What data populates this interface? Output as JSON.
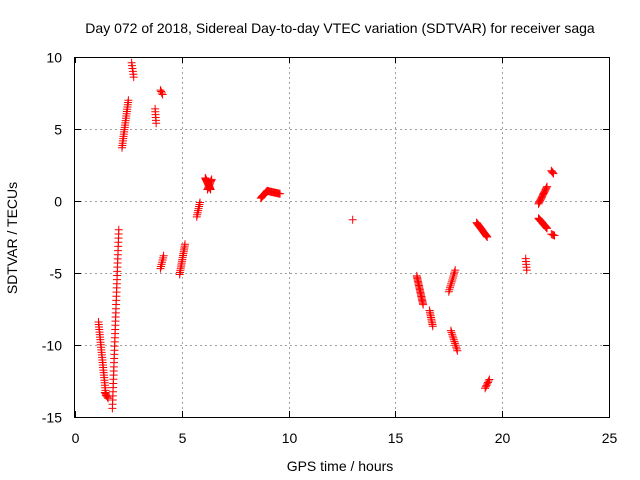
{
  "chart_data": {
    "type": "scatter",
    "title": "Day 072 of 2018, Sidereal Day-to-day VTEC variation (SDTVAR) for receiver saga",
    "xlabel": "GPS time / hours",
    "ylabel": "SDTVAR / TECUs",
    "xlim": [
      0,
      25
    ],
    "ylim": [
      -15,
      10
    ],
    "xticks": [
      0,
      5,
      10,
      15,
      20,
      25
    ],
    "yticks": [
      -15,
      -10,
      -5,
      0,
      5,
      10
    ],
    "xtick_labels": [
      "0",
      "5",
      "10",
      "15",
      "20",
      "25"
    ],
    "ytick_labels": [
      "-15",
      "-10",
      "-5",
      "0",
      "5",
      "10"
    ],
    "grid": true,
    "marker": "+",
    "color": "#ff0000",
    "segments": [
      {
        "x0": 1.1,
        "x1": 1.45,
        "y0": -8.4,
        "y1": -13.5,
        "n": 30
      },
      {
        "x0": 1.4,
        "x1": 1.55,
        "y0": -13.3,
        "y1": -13.7,
        "n": 6
      },
      {
        "x0": 1.75,
        "x1": 2.05,
        "y0": -14.4,
        "y1": -2.0,
        "n": 44
      },
      {
        "x0": 2.2,
        "x1": 2.5,
        "y0": 3.7,
        "y1": 7.0,
        "n": 22
      },
      {
        "x0": 2.65,
        "x1": 2.75,
        "y0": 9.6,
        "y1": 8.6,
        "n": 6
      },
      {
        "x0": 3.75,
        "x1": 3.8,
        "y0": 6.4,
        "y1": 5.4,
        "n": 6
      },
      {
        "x0": 4.0,
        "x1": 4.1,
        "y0": 7.7,
        "y1": 7.4,
        "n": 4
      },
      {
        "x0": 4.0,
        "x1": 4.15,
        "y0": -4.7,
        "y1": -3.8,
        "n": 7
      },
      {
        "x0": 4.9,
        "x1": 5.15,
        "y0": -5.1,
        "y1": -3.0,
        "n": 17
      },
      {
        "x0": 5.7,
        "x1": 5.85,
        "y0": -1.1,
        "y1": -0.1,
        "n": 8
      },
      {
        "x0": 6.1,
        "x1": 6.35,
        "y0": 1.6,
        "y1": 0.8,
        "n": 16
      },
      {
        "x0": 6.2,
        "x1": 6.4,
        "y0": 0.8,
        "y1": 1.5,
        "n": 10
      },
      {
        "x0": 8.7,
        "x1": 9.0,
        "y0": 0.2,
        "y1": 0.7,
        "n": 12
      },
      {
        "x0": 9.0,
        "x1": 9.6,
        "y0": 0.7,
        "y1": 0.5,
        "n": 16
      },
      {
        "x0": 13.0,
        "x1": 13.0,
        "y0": -1.3,
        "y1": -1.3,
        "n": 1
      },
      {
        "x0": 16.0,
        "x1": 16.3,
        "y0": -5.2,
        "y1": -7.2,
        "n": 22
      },
      {
        "x0": 16.6,
        "x1": 16.75,
        "y0": -7.6,
        "y1": -8.7,
        "n": 10
      },
      {
        "x0": 17.5,
        "x1": 17.8,
        "y0": -6.3,
        "y1": -4.8,
        "n": 12
      },
      {
        "x0": 17.6,
        "x1": 17.9,
        "y0": -9.0,
        "y1": -10.4,
        "n": 12
      },
      {
        "x0": 18.8,
        "x1": 19.3,
        "y0": -1.5,
        "y1": -2.5,
        "n": 20
      },
      {
        "x0": 19.2,
        "x1": 19.4,
        "y0": -13.0,
        "y1": -12.4,
        "n": 7
      },
      {
        "x0": 21.1,
        "x1": 21.15,
        "y0": -4.0,
        "y1": -4.8,
        "n": 5
      },
      {
        "x0": 21.7,
        "x1": 22.1,
        "y0": -0.2,
        "y1": 1.0,
        "n": 16
      },
      {
        "x0": 21.7,
        "x1": 22.1,
        "y0": -1.2,
        "y1": -1.9,
        "n": 16
      },
      {
        "x0": 22.3,
        "x1": 22.4,
        "y0": 2.1,
        "y1": 1.9,
        "n": 4
      },
      {
        "x0": 22.3,
        "x1": 22.45,
        "y0": -2.3,
        "y1": -2.4,
        "n": 4
      }
    ]
  }
}
